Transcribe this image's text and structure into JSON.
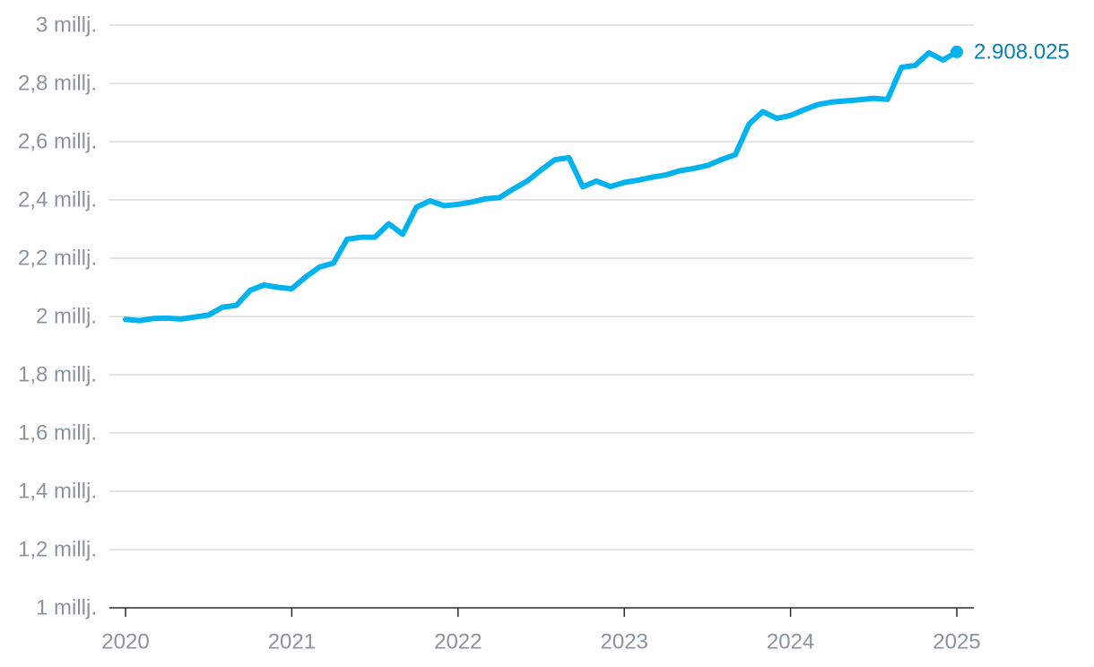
{
  "chart_data": {
    "type": "line",
    "title": "",
    "xlabel": "",
    "ylabel": "",
    "ylim": [
      1000000,
      3000000
    ],
    "xlim": [
      2020,
      2025
    ],
    "grid": true,
    "line_color": "#00b2ee",
    "label_color": "#0a7fb0",
    "y_ticks": [
      {
        "value": 1000000,
        "label": "1 millj."
      },
      {
        "value": 1200000,
        "label": "1,2 millj."
      },
      {
        "value": 1400000,
        "label": "1,4 millj."
      },
      {
        "value": 1600000,
        "label": "1,6 millj."
      },
      {
        "value": 1800000,
        "label": "1,8 millj."
      },
      {
        "value": 2000000,
        "label": "2 millj."
      },
      {
        "value": 2200000,
        "label": "2,2 millj."
      },
      {
        "value": 2400000,
        "label": "2,4 millj."
      },
      {
        "value": 2600000,
        "label": "2,6 millj."
      },
      {
        "value": 2800000,
        "label": "2,8 millj."
      },
      {
        "value": 3000000,
        "label": "3 millj."
      }
    ],
    "x_ticks": [
      {
        "value": 2020,
        "label": "2020"
      },
      {
        "value": 2021,
        "label": "2021"
      },
      {
        "value": 2022,
        "label": "2022"
      },
      {
        "value": 2023,
        "label": "2023"
      },
      {
        "value": 2024,
        "label": "2024"
      },
      {
        "value": 2025,
        "label": "2025"
      }
    ],
    "series": [
      {
        "x": [
          2020.0,
          2020.083,
          2020.167,
          2020.25,
          2020.333,
          2020.417,
          2020.5,
          2020.583,
          2020.667,
          2020.75,
          2020.833,
          2020.917,
          2021.0,
          2021.083,
          2021.167,
          2021.25,
          2021.333,
          2021.417,
          2021.5,
          2021.583,
          2021.667,
          2021.75,
          2021.833,
          2021.917,
          2022.0,
          2022.083,
          2022.167,
          2022.25,
          2022.333,
          2022.417,
          2022.5,
          2022.583,
          2022.667,
          2022.75,
          2022.833,
          2022.917,
          2023.0,
          2023.083,
          2023.167,
          2023.25,
          2023.333,
          2023.417,
          2023.5,
          2023.583,
          2023.667,
          2023.75,
          2023.833,
          2023.917,
          2024.0,
          2024.083,
          2024.167,
          2024.25,
          2024.333,
          2024.417,
          2024.5,
          2024.583,
          2024.667,
          2024.75,
          2024.833,
          2024.917,
          2025.0
        ],
        "y": [
          1990000,
          1986000,
          1993000,
          1994000,
          1991000,
          1998000,
          2005000,
          2032000,
          2038000,
          2090000,
          2108000,
          2100000,
          2095000,
          2135000,
          2170000,
          2183000,
          2265000,
          2272000,
          2272000,
          2318000,
          2282000,
          2375000,
          2397000,
          2380000,
          2385000,
          2393000,
          2404000,
          2408000,
          2438000,
          2465000,
          2503000,
          2538000,
          2545000,
          2445000,
          2465000,
          2446000,
          2460000,
          2468000,
          2478000,
          2486000,
          2500000,
          2508000,
          2518000,
          2538000,
          2555000,
          2660000,
          2703000,
          2680000,
          2690000,
          2710000,
          2728000,
          2736000,
          2740000,
          2744000,
          2749000,
          2745000,
          2855000,
          2862000,
          2905000,
          2880000,
          2908025
        ]
      }
    ],
    "end_label": "2.908.025"
  }
}
